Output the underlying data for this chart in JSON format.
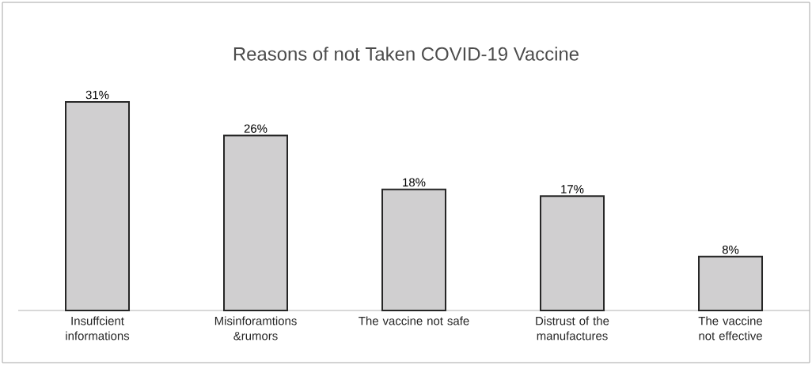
{
  "chart_data": {
    "type": "bar",
    "title": "Reasons of not Taken COVID-19 Vaccine",
    "categories": [
      "Insuffcient informations",
      "Misinforamtions &rumors",
      "The vaccine not safe",
      "Distrust of the manufactures",
      "The vaccine not effective"
    ],
    "values": [
      31,
      26,
      18,
      17,
      8
    ],
    "value_labels": [
      "31%",
      "26%",
      "18%",
      "17%",
      "8%"
    ],
    "color": "#d0cfd0"
  }
}
